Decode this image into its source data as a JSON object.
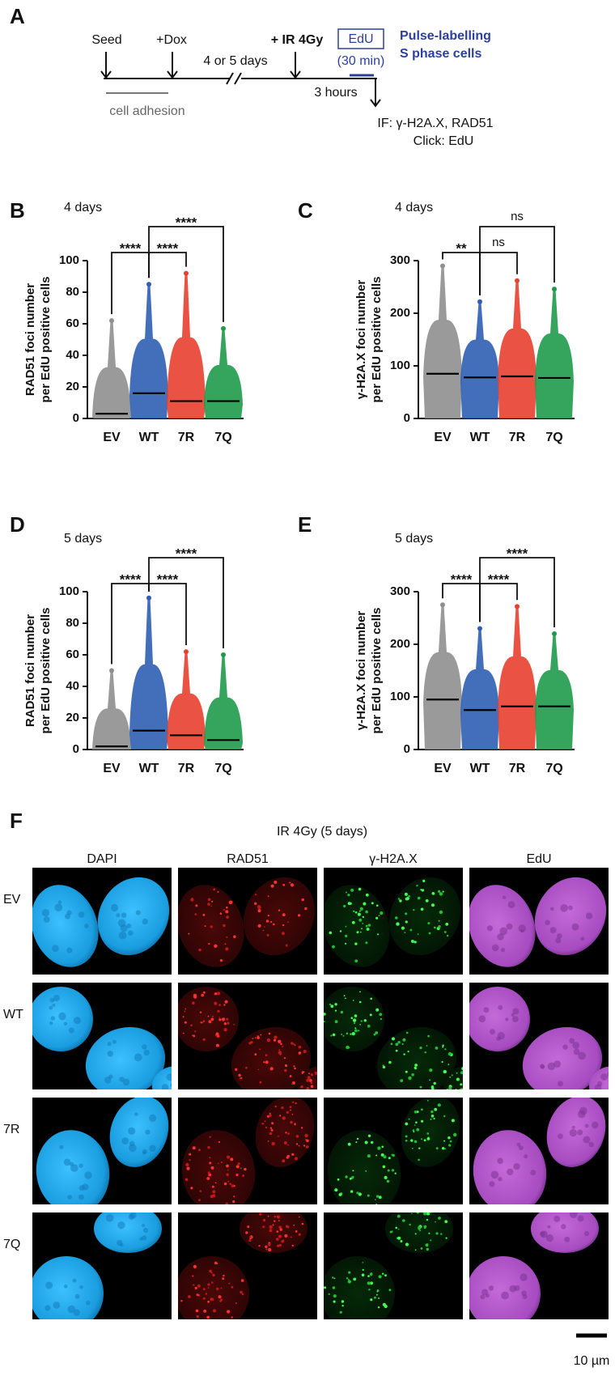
{
  "panel_labels": [
    "A",
    "B",
    "C",
    "D",
    "E",
    "F"
  ],
  "panel_a": {
    "steps": [
      "Seed",
      "+Dox",
      "+ IR 4Gy"
    ],
    "interval": "4 or 5 days",
    "edu_box": "EdU",
    "edu_time": "(30 min)",
    "pulse": [
      "Pulse-labelling",
      "S phase cells"
    ],
    "adhesion": "cell adhesion",
    "wait": "3 hours",
    "readout": [
      "IF: γ-H2A.X, RAD51",
      "Click: EdU"
    ]
  },
  "chart_data": [
    {
      "type": "swarm",
      "subtitle": "4 days",
      "ylabel": [
        "RAD51 foci number",
        "per EdU positive cells"
      ],
      "categories": [
        "EV",
        "WT",
        "7R",
        "7Q"
      ],
      "colors": [
        "#8f8f8f",
        "#2f5fb3",
        "#e8402f",
        "#1f9a4b"
      ],
      "values": [
        3,
        16,
        11,
        11
      ],
      "max": [
        62,
        85,
        92,
        57
      ],
      "ylim": [
        0,
        100
      ],
      "yticks": [
        0,
        20,
        40,
        60,
        80,
        100
      ],
      "comparisons": [
        {
          "from": "EV",
          "to": "WT",
          "label": "****"
        },
        {
          "from": "WT",
          "to": "7R",
          "label": "****"
        },
        {
          "from": "WT",
          "to": "7Q",
          "label": "****"
        }
      ]
    },
    {
      "type": "swarm",
      "subtitle": "4 days",
      "ylabel": [
        "γ-H2A.X foci number",
        "per EdU positive cells"
      ],
      "categories": [
        "EV",
        "WT",
        "7R",
        "7Q"
      ],
      "colors": [
        "#8f8f8f",
        "#2f5fb3",
        "#e8402f",
        "#1f9a4b"
      ],
      "values": [
        85,
        78,
        80,
        77
      ],
      "max": [
        290,
        222,
        262,
        246
      ],
      "ylim": [
        0,
        300
      ],
      "yticks": [
        0,
        100,
        200,
        300
      ],
      "comparisons": [
        {
          "from": "EV",
          "to": "WT",
          "label": "**"
        },
        {
          "from": "WT",
          "to": "7R",
          "label": "ns"
        },
        {
          "from": "WT",
          "to": "7Q",
          "label": "ns"
        }
      ]
    },
    {
      "type": "swarm",
      "subtitle": "5 days",
      "ylabel": [
        "RAD51 foci number",
        "per EdU positive cells"
      ],
      "categories": [
        "EV",
        "WT",
        "7R",
        "7Q"
      ],
      "colors": [
        "#8f8f8f",
        "#2f5fb3",
        "#e8402f",
        "#1f9a4b"
      ],
      "values": [
        2,
        12,
        9,
        6
      ],
      "max": [
        50,
        96,
        62,
        60
      ],
      "ylim": [
        0,
        100
      ],
      "yticks": [
        0,
        20,
        40,
        60,
        80,
        100
      ],
      "comparisons": [
        {
          "from": "EV",
          "to": "WT",
          "label": "****"
        },
        {
          "from": "WT",
          "to": "7R",
          "label": "****"
        },
        {
          "from": "WT",
          "to": "7Q",
          "label": "****"
        }
      ]
    },
    {
      "type": "swarm",
      "subtitle": "5 days",
      "ylabel": [
        "γ-H2A.X foci number",
        "per EdU positive cells"
      ],
      "categories": [
        "EV",
        "WT",
        "7R",
        "7Q"
      ],
      "colors": [
        "#8f8f8f",
        "#2f5fb3",
        "#e8402f",
        "#1f9a4b"
      ],
      "values": [
        95,
        75,
        82,
        82
      ],
      "max": [
        275,
        230,
        272,
        220
      ],
      "ylim": [
        0,
        300
      ],
      "yticks": [
        0,
        100,
        200,
        300
      ],
      "comparisons": [
        {
          "from": "EV",
          "to": "WT",
          "label": "****"
        },
        {
          "from": "WT",
          "to": "7R",
          "label": "****"
        },
        {
          "from": "WT",
          "to": "7Q",
          "label": "****"
        }
      ]
    }
  ],
  "panel_f": {
    "title": "IR 4Gy (5 days)",
    "channels": [
      "DAPI",
      "RAD51",
      "γ-H2A.X",
      "EdU"
    ],
    "samples": [
      "EV",
      "WT",
      "7R",
      "7Q"
    ],
    "scale_bar": "10 µm"
  }
}
